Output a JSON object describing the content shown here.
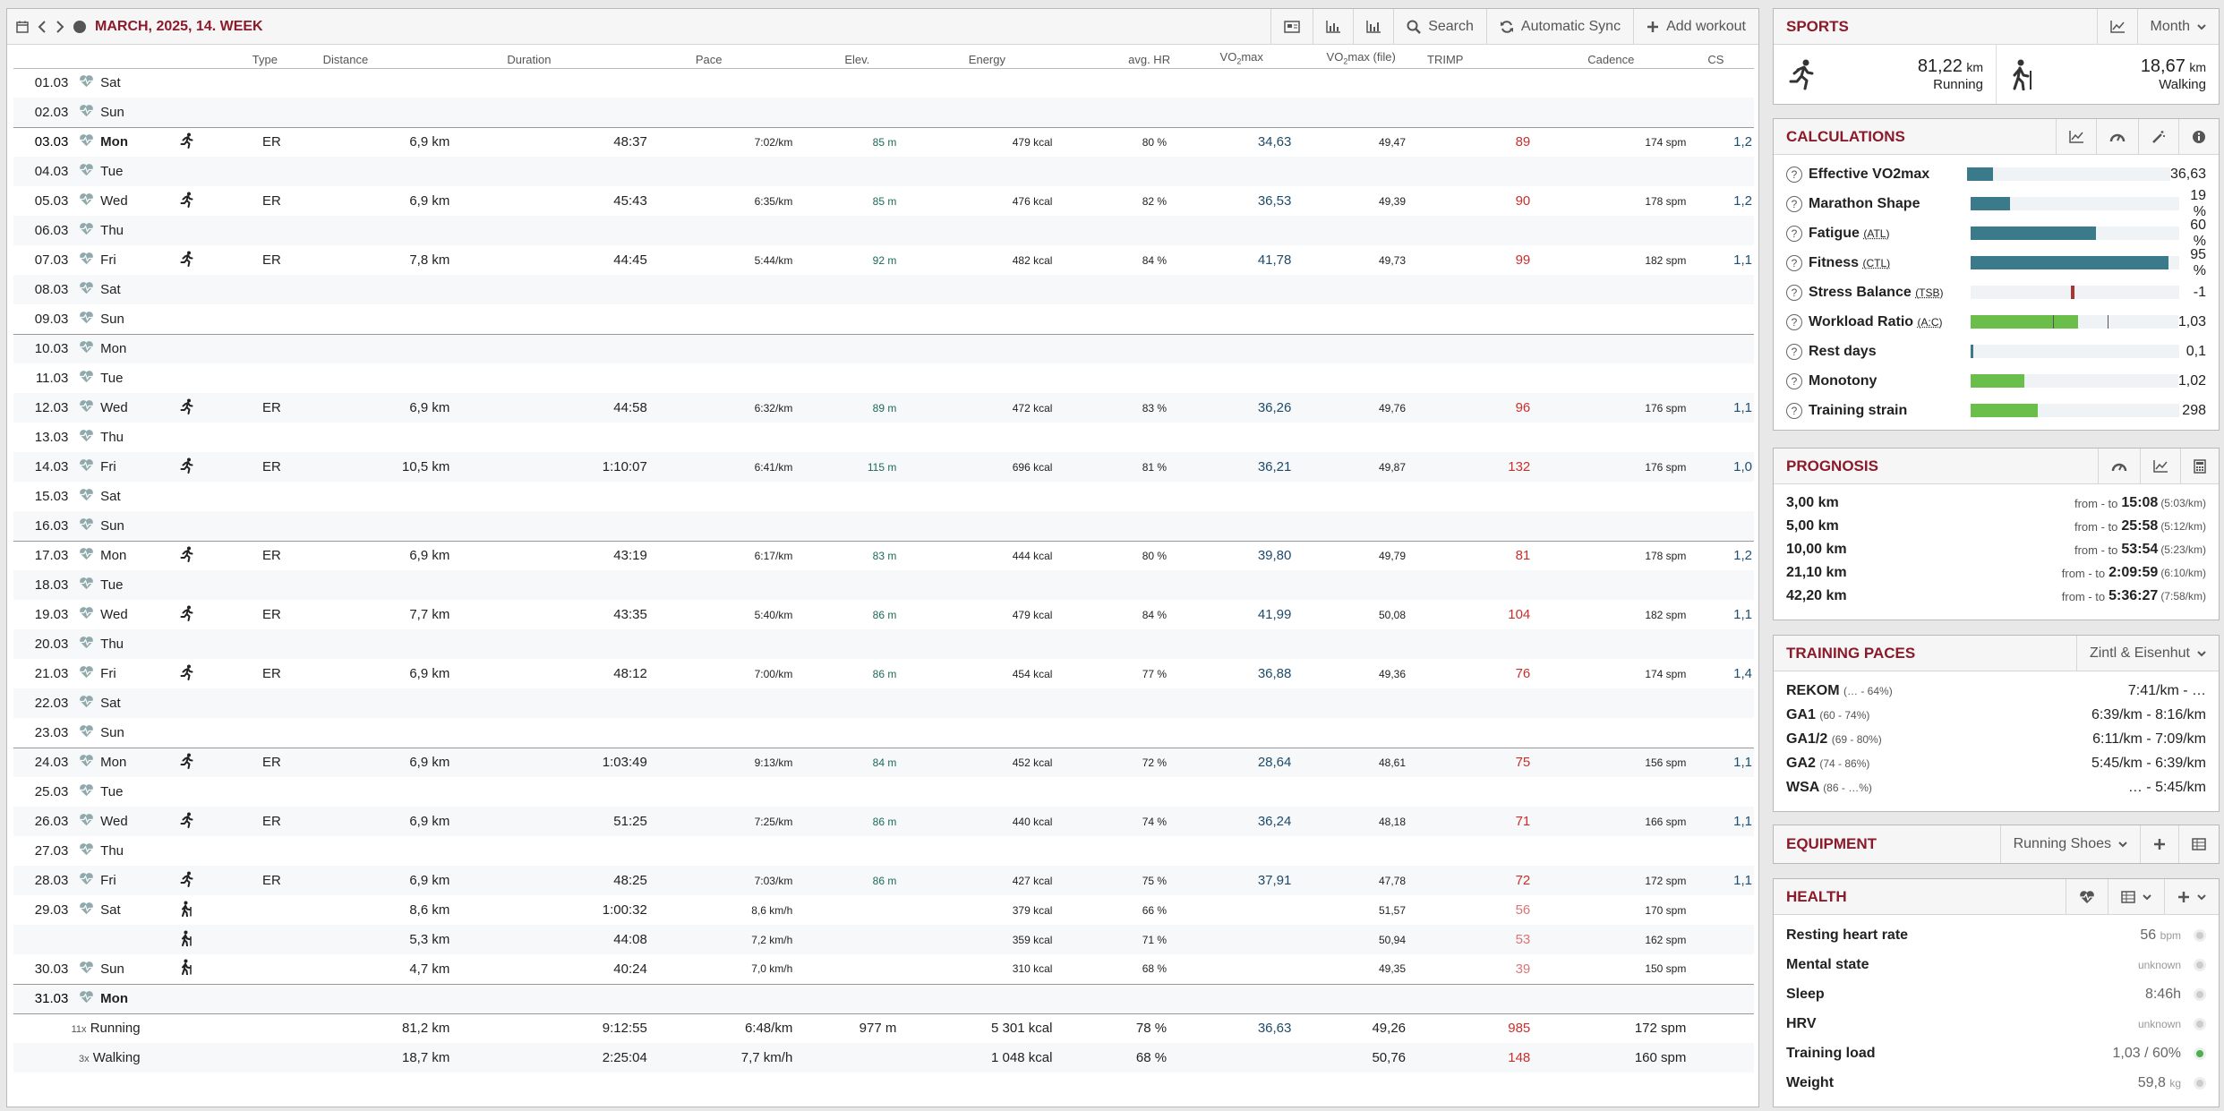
{
  "calendar": {
    "title": "MARCH, 2025, 14. WEEK",
    "toolbar": {
      "search": "Search",
      "sync": "Automatic Sync",
      "add": "Add workout"
    },
    "columns": [
      "Type",
      "Distance",
      "Duration",
      "Pace",
      "Elev.",
      "Energy",
      "avg. HR",
      "VO",
      "max",
      "VO",
      "max (file)",
      "TRIMP",
      "Cadence",
      "CS"
    ],
    "rows": [
      {
        "date": "01.03",
        "day": "Sat"
      },
      {
        "date": "02.03",
        "day": "Sun"
      },
      {
        "date": "03.03",
        "day": "Mon",
        "wk": true,
        "bold": true,
        "ic": "run",
        "type": "ER",
        "dist": "6,9 km",
        "dur": "48:37",
        "pace": "7:02/km",
        "elev": "85 m",
        "energy": "479 kcal",
        "hr": "80 %",
        "vo2": "34,63",
        "vo2f": "49,47",
        "trimp": "89",
        "cad": "174 spm",
        "cs": "1,2"
      },
      {
        "date": "04.03",
        "day": "Tue"
      },
      {
        "date": "05.03",
        "day": "Wed",
        "ic": "run",
        "type": "ER",
        "dist": "6,9 km",
        "dur": "45:43",
        "pace": "6:35/km",
        "elev": "85 m",
        "energy": "476 kcal",
        "hr": "82 %",
        "vo2": "36,53",
        "vo2f": "49,39",
        "trimp": "90",
        "cad": "178 spm",
        "cs": "1,2"
      },
      {
        "date": "06.03",
        "day": "Thu"
      },
      {
        "date": "07.03",
        "day": "Fri",
        "ic": "run",
        "type": "ER",
        "dist": "7,8 km",
        "dur": "44:45",
        "pace": "5:44/km",
        "elev": "92 m",
        "energy": "482 kcal",
        "hr": "84 %",
        "vo2": "41,78",
        "vo2f": "49,73",
        "trimp": "99",
        "cad": "182 spm",
        "cs": "1,1"
      },
      {
        "date": "08.03",
        "day": "Sat"
      },
      {
        "date": "09.03",
        "day": "Sun"
      },
      {
        "date": "10.03",
        "day": "Mon",
        "wk": true
      },
      {
        "date": "11.03",
        "day": "Tue"
      },
      {
        "date": "12.03",
        "day": "Wed",
        "ic": "run",
        "type": "ER",
        "dist": "6,9 km",
        "dur": "44:58",
        "pace": "6:32/km",
        "elev": "89 m",
        "energy": "472 kcal",
        "hr": "83 %",
        "vo2": "36,26",
        "vo2f": "49,76",
        "trimp": "96",
        "cad": "176 spm",
        "cs": "1,1"
      },
      {
        "date": "13.03",
        "day": "Thu"
      },
      {
        "date": "14.03",
        "day": "Fri",
        "ic": "run",
        "type": "ER",
        "dist": "10,5 km",
        "dur": "1:10:07",
        "pace": "6:41/km",
        "elev": "115 m",
        "energy": "696 kcal",
        "hr": "81 %",
        "vo2": "36,21",
        "vo2f": "49,87",
        "trimp": "132",
        "cad": "176 spm",
        "cs": "1,0"
      },
      {
        "date": "15.03",
        "day": "Sat"
      },
      {
        "date": "16.03",
        "day": "Sun"
      },
      {
        "date": "17.03",
        "day": "Mon",
        "wk": true,
        "ic": "run",
        "type": "ER",
        "dist": "6,9 km",
        "dur": "43:19",
        "pace": "6:17/km",
        "elev": "83 m",
        "energy": "444 kcal",
        "hr": "80 %",
        "vo2": "39,80",
        "vo2f": "49,79",
        "trimp": "81",
        "cad": "178 spm",
        "cs": "1,2"
      },
      {
        "date": "18.03",
        "day": "Tue"
      },
      {
        "date": "19.03",
        "day": "Wed",
        "ic": "run",
        "type": "ER",
        "dist": "7,7 km",
        "dur": "43:35",
        "pace": "5:40/km",
        "elev": "86 m",
        "energy": "479 kcal",
        "hr": "84 %",
        "vo2": "41,99",
        "vo2f": "50,08",
        "trimp": "104",
        "cad": "182 spm",
        "cs": "1,1"
      },
      {
        "date": "20.03",
        "day": "Thu"
      },
      {
        "date": "21.03",
        "day": "Fri",
        "ic": "run",
        "type": "ER",
        "dist": "6,9 km",
        "dur": "48:12",
        "pace": "7:00/km",
        "elev": "86 m",
        "energy": "454 kcal",
        "hr": "77 %",
        "vo2": "36,88",
        "vo2f": "49,36",
        "trimp": "76",
        "cad": "174 spm",
        "cs": "1,4"
      },
      {
        "date": "22.03",
        "day": "Sat"
      },
      {
        "date": "23.03",
        "day": "Sun"
      },
      {
        "date": "24.03",
        "day": "Mon",
        "wk": true,
        "ic": "run",
        "type": "ER",
        "dist": "6,9 km",
        "dur": "1:03:49",
        "pace": "9:13/km",
        "elev": "84 m",
        "energy": "452 kcal",
        "hr": "72 %",
        "vo2": "28,64",
        "vo2f": "48,61",
        "trimp": "75",
        "cad": "156 spm",
        "cs": "1,1"
      },
      {
        "date": "25.03",
        "day": "Tue"
      },
      {
        "date": "26.03",
        "day": "Wed",
        "ic": "run",
        "type": "ER",
        "dist": "6,9 km",
        "dur": "51:25",
        "pace": "7:25/km",
        "elev": "86 m",
        "energy": "440 kcal",
        "hr": "74 %",
        "vo2": "36,24",
        "vo2f": "48,18",
        "trimp": "71",
        "cad": "166 spm",
        "cs": "1,1"
      },
      {
        "date": "27.03",
        "day": "Thu"
      },
      {
        "date": "28.03",
        "day": "Fri",
        "ic": "run",
        "type": "ER",
        "dist": "6,9 km",
        "dur": "48:25",
        "pace": "7:03/km",
        "elev": "86 m",
        "energy": "427 kcal",
        "hr": "75 %",
        "vo2": "37,91",
        "vo2f": "47,78",
        "trimp": "72",
        "cad": "172 spm",
        "cs": "1,1"
      },
      {
        "date": "29.03",
        "day": "Sat",
        "ic": "walk",
        "dist": "8,6 km",
        "dur": "1:00:32",
        "pace": "8,6 km/h",
        "energy": "379 kcal",
        "hr": "66 %",
        "vo2f": "51,57",
        "trimp": "56",
        "cad": "170 spm",
        "light": true
      },
      {
        "date": "",
        "day": "",
        "ic": "walk",
        "dist": "5,3 km",
        "dur": "44:08",
        "pace": "7,2 km/h",
        "energy": "359 kcal",
        "hr": "71 %",
        "vo2f": "50,94",
        "trimp": "53",
        "cad": "162 spm",
        "light": true,
        "nohr": true
      },
      {
        "date": "30.03",
        "day": "Sun",
        "ic": "walk",
        "dist": "4,7 km",
        "dur": "40:24",
        "pace": "7,0 km/h",
        "energy": "310 kcal",
        "hr": "68 %",
        "vo2f": "49,35",
        "trimp": "39",
        "cad": "150 spm",
        "light": true
      },
      {
        "date": "31.03",
        "day": "Mon",
        "wk": true,
        "bold": true
      }
    ],
    "totals": [
      {
        "count": "11x",
        "label": "Running",
        "dist": "81,2 km",
        "dur": "9:12:55",
        "pace": "6:48/km",
        "elev": "977 m",
        "energy": "5 301 kcal",
        "hr": "78 %",
        "vo2": "36,63",
        "vo2f": "49,26",
        "trimp": "985",
        "cad": "172 spm"
      },
      {
        "count": "3x",
        "label": "Walking",
        "dist": "18,7 km",
        "dur": "2:25:04",
        "pace": "7,7 km/h",
        "elev": "",
        "energy": "1 048 kcal",
        "hr": "68 %",
        "vo2": "",
        "vo2f": "50,76",
        "trimp": "148",
        "cad": "160 spm"
      }
    ]
  },
  "sports": {
    "title": "SPORTS",
    "period": "Month",
    "items": [
      {
        "value": "81,22",
        "unit": "km",
        "label": "Running",
        "icon": "running-icon"
      },
      {
        "value": "18,67",
        "unit": "km",
        "label": "Walking",
        "icon": "walking-icon"
      }
    ]
  },
  "calculations": {
    "title": "CALCULATIONS",
    "rows": [
      {
        "label": "Effective VO2max",
        "sub": "",
        "value": "36,63",
        "fill": 0.13,
        "color": "#3b7a8a"
      },
      {
        "label": "Marathon Shape",
        "sub": "",
        "value": "19 %",
        "fill": 0.19,
        "color": "#3b7a8a"
      },
      {
        "label": "Fatigue",
        "sub": "(ATL)",
        "value": "60 %",
        "fill": 0.6,
        "color": "#3b7a8a"
      },
      {
        "label": "Fitness",
        "sub": "(CTL)",
        "value": "95 %",
        "fill": 0.95,
        "color": "#3b7a8a"
      },
      {
        "label": "Stress Balance",
        "sub": "(TSB)",
        "value": "-1",
        "fill": 0,
        "color": "#a33"
      },
      {
        "label": "Workload Ratio",
        "sub": "(A:C)",
        "value": "1,03",
        "fill": 0.52,
        "color": "#6abf4b"
      },
      {
        "label": "Rest days",
        "sub": "",
        "value": "0,1",
        "fill": 0.015,
        "color": "#3b7a8a"
      },
      {
        "label": "Monotony",
        "sub": "",
        "value": "1,02",
        "fill": 0.26,
        "color": "#6abf4b"
      },
      {
        "label": "Training strain",
        "sub": "",
        "value": "298",
        "fill": 0.32,
        "color": "#6abf4b"
      }
    ]
  },
  "prognosis": {
    "title": "PROGNOSIS",
    "rows": [
      {
        "dist": "3,00 km",
        "from": "from - to",
        "time": "15:08",
        "pace": "(5:03/km)"
      },
      {
        "dist": "5,00 km",
        "from": "from - to",
        "time": "25:58",
        "pace": "(5:12/km)"
      },
      {
        "dist": "10,00 km",
        "from": "from - to",
        "time": "53:54",
        "pace": "(5:23/km)"
      },
      {
        "dist": "21,10 km",
        "from": "from - to",
        "time": "2:09:59",
        "pace": "(6:10/km)"
      },
      {
        "dist": "42,20 km",
        "from": "from - to",
        "time": "5:36:27",
        "pace": "(7:58/km)"
      }
    ]
  },
  "paces": {
    "title": "TRAINING PACES",
    "model": "Zintl & Eisenhut",
    "rows": [
      {
        "name": "REKOM",
        "range": "(… - 64%)",
        "value": "7:41/km - …"
      },
      {
        "name": "GA1",
        "range": "(60 - 74%)",
        "value": "6:39/km - 8:16/km"
      },
      {
        "name": "GA1/2",
        "range": "(69 - 80%)",
        "value": "6:11/km - 7:09/km"
      },
      {
        "name": "GA2",
        "range": "(74 - 86%)",
        "value": "5:45/km - 6:39/km"
      },
      {
        "name": "WSA",
        "range": "(86 - …%)",
        "value": "… - 5:45/km"
      }
    ]
  },
  "equipment": {
    "title": "EQUIPMENT",
    "selected": "Running Shoes"
  },
  "health": {
    "title": "HEALTH",
    "rows": [
      {
        "label": "Resting heart rate",
        "value": "56",
        "unit": "bpm",
        "on": false
      },
      {
        "label": "Mental state",
        "value": "",
        "unit": "unknown",
        "on": false
      },
      {
        "label": "Sleep",
        "value": "8:46h",
        "unit": "",
        "on": false
      },
      {
        "label": "HRV",
        "value": "",
        "unit": "unknown",
        "on": false
      },
      {
        "label": "Training load",
        "value": "1,03 / 60%",
        "unit": "",
        "on": true
      },
      {
        "label": "Weight",
        "value": "59,8",
        "unit": "kg",
        "on": false
      }
    ]
  }
}
